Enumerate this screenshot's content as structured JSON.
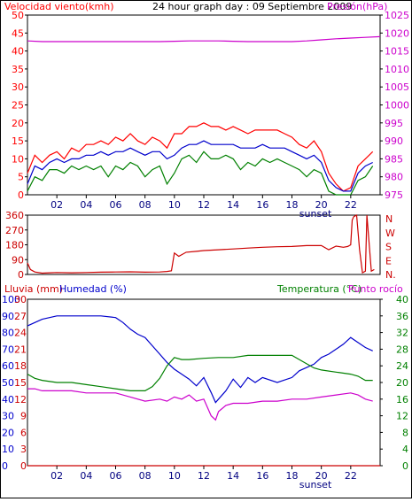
{
  "header": {
    "left_label": "Velocidad viento(kmh)",
    "title": "24 hour graph day : 09 Septiembre 2009",
    "right_label": "Presión(hPa)"
  },
  "x_ticks": [
    "02",
    "04",
    "06",
    "08",
    "10",
    "12",
    "14",
    "16",
    "18",
    "20",
    "22"
  ],
  "sunset_label": "sunset",
  "colors": {
    "wind_speed": "#ff0000",
    "wind_avg": "#0000cc",
    "wind_low": "#008000",
    "pressure": "#cc00cc",
    "direction": "#cc0000",
    "humidity": "#0000cc",
    "temperature": "#008000",
    "dewpoint": "#cc00cc",
    "rain": "#cc0000",
    "frame": "#000000"
  },
  "chart_data": [
    {
      "type": "line",
      "name": "wind_pressure",
      "x_range": [
        0,
        24
      ],
      "y_left": {
        "label": "Velocidad viento(kmh)",
        "range": [
          0,
          50
        ],
        "ticks": [
          0,
          5,
          10,
          15,
          20,
          25,
          30,
          35,
          40,
          45,
          50
        ]
      },
      "y_right": {
        "label": "Presión(hPa)",
        "range": [
          975,
          1025
        ],
        "ticks": [
          975,
          980,
          985,
          990,
          995,
          1000,
          1005,
          1010,
          1015,
          1020,
          1025
        ]
      },
      "series": [
        {
          "axis": "left",
          "color": "#ff0000",
          "x": [
            0,
            0.5,
            1,
            1.5,
            2,
            2.5,
            3,
            3.5,
            4,
            4.5,
            5,
            5.5,
            6,
            6.5,
            7,
            7.5,
            8,
            8.5,
            9,
            9.5,
            10,
            10.5,
            11,
            11.5,
            12,
            12.5,
            13,
            13.5,
            14,
            14.5,
            15,
            15.5,
            16,
            16.5,
            17,
            17.5,
            18,
            18.5,
            19,
            19.5,
            20,
            20.5,
            21,
            21.5,
            22,
            22.5,
            23,
            23.5
          ],
          "values": [
            6,
            11,
            9,
            11,
            12,
            10,
            13,
            12,
            14,
            14,
            15,
            14,
            16,
            15,
            17,
            15,
            14,
            16,
            15,
            13,
            17,
            17,
            19,
            19,
            20,
            19,
            19,
            18,
            19,
            18,
            17,
            18,
            18,
            18,
            18,
            17,
            16,
            14,
            13,
            15,
            12,
            6,
            3,
            1,
            2,
            8,
            10,
            12
          ]
        },
        {
          "axis": "left",
          "color": "#0000cc",
          "x": [
            0,
            0.5,
            1,
            1.5,
            2,
            2.5,
            3,
            3.5,
            4,
            4.5,
            5,
            5.5,
            6,
            6.5,
            7,
            7.5,
            8,
            8.5,
            9,
            9.5,
            10,
            10.5,
            11,
            11.5,
            12,
            12.5,
            13,
            13.5,
            14,
            14.5,
            15,
            15.5,
            16,
            16.5,
            17,
            17.5,
            18,
            18.5,
            19,
            19.5,
            20,
            20.5,
            21,
            21.5,
            22,
            22.5,
            23,
            23.5
          ],
          "values": [
            3,
            8,
            7,
            9,
            10,
            9,
            10,
            10,
            11,
            11,
            12,
            11,
            12,
            12,
            13,
            12,
            11,
            12,
            12,
            10,
            11,
            13,
            14,
            14,
            15,
            14,
            14,
            14,
            14,
            13,
            13,
            13,
            14,
            13,
            13,
            13,
            12,
            11,
            10,
            11,
            9,
            4,
            2,
            1,
            1,
            6,
            8,
            9
          ]
        },
        {
          "axis": "left",
          "color": "#008000",
          "x": [
            0,
            0.5,
            1,
            1.5,
            2,
            2.5,
            3,
            3.5,
            4,
            4.5,
            5,
            5.5,
            6,
            6.5,
            7,
            7.5,
            8,
            8.5,
            9,
            9.5,
            10,
            10.5,
            11,
            11.5,
            12,
            12.5,
            13,
            13.5,
            14,
            14.5,
            15,
            15.5,
            16,
            16.5,
            17,
            17.5,
            18,
            18.5,
            19,
            19.5,
            20,
            20.5,
            21,
            21.5,
            22,
            22.5,
            23,
            23.5
          ],
          "values": [
            1,
            5,
            4,
            7,
            7,
            6,
            8,
            7,
            8,
            7,
            8,
            5,
            8,
            7,
            9,
            8,
            5,
            7,
            8,
            3,
            6,
            10,
            11,
            9,
            12,
            10,
            10,
            11,
            10,
            7,
            9,
            8,
            10,
            9,
            10,
            9,
            8,
            7,
            5,
            7,
            6,
            1,
            0,
            0,
            0,
            4,
            5,
            8
          ]
        },
        {
          "axis": "right",
          "color": "#cc00cc",
          "x": [
            0,
            1,
            2,
            3,
            4,
            5,
            6,
            7,
            8,
            9,
            10,
            11,
            12,
            13,
            14,
            15,
            16,
            17,
            18,
            19,
            20,
            21,
            22,
            23,
            24
          ],
          "values": [
            1017.8,
            1017.6,
            1017.6,
            1017.6,
            1017.6,
            1017.6,
            1017.6,
            1017.6,
            1017.6,
            1017.6,
            1017.7,
            1017.8,
            1017.8,
            1017.8,
            1017.7,
            1017.6,
            1017.6,
            1017.6,
            1017.6,
            1017.8,
            1018.1,
            1018.4,
            1018.6,
            1018.8,
            1019.0
          ]
        }
      ]
    },
    {
      "type": "line",
      "name": "wind_direction",
      "x_range": [
        0,
        24
      ],
      "y_left": {
        "range": [
          0,
          360
        ],
        "ticks": [
          0,
          90,
          180,
          270,
          360
        ]
      },
      "y_right_labels": [
        "N",
        "W",
        "S",
        "E",
        "N."
      ],
      "series": [
        {
          "color": "#cc0000",
          "x": [
            0,
            0.2,
            0.5,
            1,
            1.5,
            2,
            3,
            4,
            5,
            6,
            7,
            8,
            9,
            9.5,
            9.8,
            10,
            10.3,
            10.8,
            11.5,
            12,
            13,
            14,
            15,
            16,
            17,
            18,
            19,
            20,
            20.5,
            21,
            21.5,
            21.8,
            22,
            22.1,
            22.2,
            22.4,
            22.6,
            22.8,
            23,
            23.1,
            23.4,
            23.6
          ],
          "values": [
            70,
            30,
            15,
            8,
            10,
            12,
            10,
            12,
            14,
            15,
            16,
            14,
            15,
            18,
            22,
            130,
            110,
            135,
            140,
            145,
            150,
            155,
            160,
            165,
            168,
            170,
            175,
            175,
            150,
            172,
            165,
            170,
            180,
            330,
            350,
            360,
            150,
            10,
            20,
            360,
            20,
            30
          ]
        }
      ]
    },
    {
      "type": "line",
      "name": "humidity_temperature",
      "x_range": [
        0,
        24
      ],
      "y_left_rain": {
        "label": "Lluvia (mm)",
        "ticks": [
          0,
          3,
          6,
          9,
          12,
          15,
          18,
          21,
          24,
          27,
          30
        ]
      },
      "y_left_humidity": {
        "label": "Humedad (%)",
        "ticks": [
          0,
          10,
          20,
          30,
          40,
          50,
          60,
          70,
          80,
          90,
          100
        ]
      },
      "y_right": {
        "label": "Temperatura (°C)",
        "range": [
          0,
          40
        ],
        "ticks": [
          0,
          4,
          8,
          12,
          16,
          20,
          24,
          28,
          32,
          36,
          40
        ]
      },
      "dew_label": "Punto rocío",
      "series": [
        {
          "name": "Humedad (%)",
          "axis": "humidity",
          "color": "#0000cc",
          "x": [
            0,
            0.5,
            1,
            1.5,
            2,
            3,
            4,
            5,
            6,
            6.5,
            7,
            7.5,
            8,
            8.5,
            9,
            9.5,
            10,
            10.5,
            11,
            11.5,
            12,
            12.5,
            12.8,
            13,
            13.5,
            14,
            14.5,
            15,
            15.5,
            16,
            17,
            18,
            18.5,
            19,
            19.5,
            20,
            20.5,
            21,
            21.5,
            22,
            22.5,
            23,
            23.5
          ],
          "values": [
            84,
            86,
            88,
            89,
            90,
            90,
            90,
            90,
            89,
            86,
            82,
            79,
            77,
            72,
            67,
            62,
            58,
            55,
            52,
            48,
            53,
            44,
            38,
            40,
            45,
            52,
            47,
            53,
            50,
            53,
            50,
            53,
            57,
            59,
            61,
            65,
            67,
            70,
            73,
            77,
            74,
            71,
            69
          ]
        },
        {
          "name": "Temperatura (°C)",
          "axis": "right",
          "color": "#008000",
          "x": [
            0,
            0.5,
            1,
            2,
            3,
            4,
            5,
            6,
            7,
            8,
            8.5,
            9,
            9.5,
            10,
            10.5,
            11,
            12,
            13,
            14,
            15,
            16,
            17,
            18,
            18.5,
            19,
            19.5,
            20,
            21,
            22,
            22.5,
            23,
            23.5
          ],
          "values": [
            22,
            21,
            20.5,
            20,
            20,
            19.5,
            19,
            18.5,
            18,
            18,
            19,
            21,
            24,
            26,
            25.5,
            25.5,
            25.8,
            26,
            26,
            26.5,
            26.5,
            26.5,
            26.5,
            25.5,
            24.5,
            23.5,
            23,
            22.5,
            22,
            21.5,
            20.5,
            20.5
          ]
        },
        {
          "name": "Punto rocío",
          "axis": "right",
          "color": "#cc00cc",
          "x": [
            0,
            0.5,
            1,
            2,
            3,
            4,
            5,
            6,
            7,
            8,
            9,
            9.5,
            10,
            10.5,
            11,
            11.5,
            12,
            12.5,
            12.8,
            13,
            13.5,
            14,
            15,
            16,
            17,
            18,
            19,
            20,
            21,
            22,
            22.5,
            23,
            23.5
          ],
          "values": [
            18.5,
            18.5,
            18,
            18,
            18,
            17.5,
            17.5,
            17.5,
            16.5,
            15.5,
            16,
            15.5,
            16.5,
            16,
            17,
            15.5,
            16,
            12,
            11,
            13,
            14.5,
            15,
            15,
            15.5,
            15.5,
            16,
            16,
            16.5,
            17,
            17.5,
            17,
            16,
            15.5
          ]
        },
        {
          "name": "Lluvia (mm)",
          "axis": "rain",
          "color": "#cc0000",
          "x": [
            0,
            24
          ],
          "values": [
            0,
            0
          ]
        }
      ]
    }
  ]
}
